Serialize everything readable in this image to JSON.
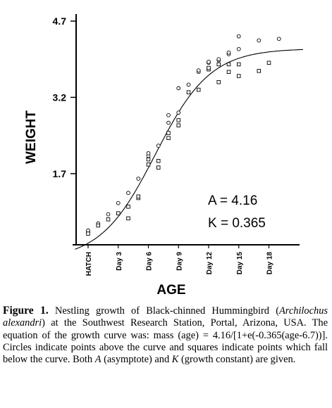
{
  "chart_data": {
    "type": "scatter",
    "xlabel": "AGE",
    "ylabel": "WEIGHT",
    "ylim": [
      0.3,
      4.7
    ],
    "yticks": [
      "4.7",
      "3.2",
      "1.7"
    ],
    "ytick_values": [
      4.7,
      3.2,
      1.7
    ],
    "xlim": [
      0,
      22
    ],
    "xticks": [
      "HATCH",
      "Day 3",
      "Day 6",
      "Day 9",
      "Day 12",
      "Day 15",
      "Day 18"
    ],
    "xtick_values": [
      0,
      3,
      6,
      9,
      12,
      15,
      18
    ],
    "annotations": [
      "A = 4.16",
      "K = 0.365"
    ],
    "curve": {
      "model": "logistic",
      "A": 4.16,
      "K": 0.365,
      "t0": 6.7
    },
    "series": [
      {
        "marker": "circle",
        "points": [
          [
            0,
            0.55
          ],
          [
            0,
            0.58
          ],
          [
            1,
            0.7
          ],
          [
            1,
            0.72
          ],
          [
            2,
            0.9
          ],
          [
            3,
            1.12
          ],
          [
            4,
            1.32
          ],
          [
            5,
            1.6
          ],
          [
            6,
            2.05
          ],
          [
            6,
            2.1
          ],
          [
            7,
            2.25
          ],
          [
            8,
            2.7
          ],
          [
            8,
            2.85
          ],
          [
            9,
            2.9
          ],
          [
            9,
            3.38
          ],
          [
            10,
            3.45
          ],
          [
            11,
            3.7
          ],
          [
            11,
            3.73
          ],
          [
            12,
            3.88
          ],
          [
            12,
            3.9
          ],
          [
            13,
            3.93
          ],
          [
            13,
            3.95
          ],
          [
            14,
            4.05
          ],
          [
            14,
            4.08
          ],
          [
            15,
            4.15
          ],
          [
            15,
            4.4
          ],
          [
            17,
            4.32
          ],
          [
            19,
            4.35
          ]
        ]
      },
      {
        "marker": "square",
        "points": [
          [
            0,
            0.52
          ],
          [
            1,
            0.68
          ],
          [
            2,
            0.8
          ],
          [
            3,
            0.92
          ],
          [
            4,
            0.82
          ],
          [
            4,
            1.05
          ],
          [
            5,
            1.22
          ],
          [
            5,
            1.25
          ],
          [
            6,
            1.88
          ],
          [
            6,
            1.98
          ],
          [
            7,
            1.82
          ],
          [
            7,
            1.95
          ],
          [
            8,
            2.4
          ],
          [
            8,
            2.5
          ],
          [
            9,
            2.65
          ],
          [
            9,
            2.75
          ],
          [
            10,
            3.3
          ],
          [
            11,
            3.35
          ],
          [
            12,
            3.75
          ],
          [
            12,
            3.78
          ],
          [
            13,
            3.5
          ],
          [
            13,
            3.85
          ],
          [
            14,
            3.7
          ],
          [
            14,
            3.85
          ],
          [
            15,
            3.62
          ],
          [
            15,
            3.85
          ],
          [
            17,
            3.72
          ],
          [
            18,
            3.88
          ]
        ]
      }
    ]
  },
  "caption": {
    "figure_label": "Figure 1.",
    "text_1": " Nestling growth of Black-chinned Hummingbird (",
    "species": "Archilochus alexandri",
    "text_2": ") at the Southwest Research Station, Portal, Arizona, USA. The equation of the growth curve was: mass (age) = 4.16/[1+e(-0.365(age-6.7))]. Circles indicate points above the curve and squares indicate points which fall below the curve. Both ",
    "a_italic": "A",
    "text_3": " (asymptote) and ",
    "k_italic": "K",
    "text_4": " (growth constant) are given."
  }
}
